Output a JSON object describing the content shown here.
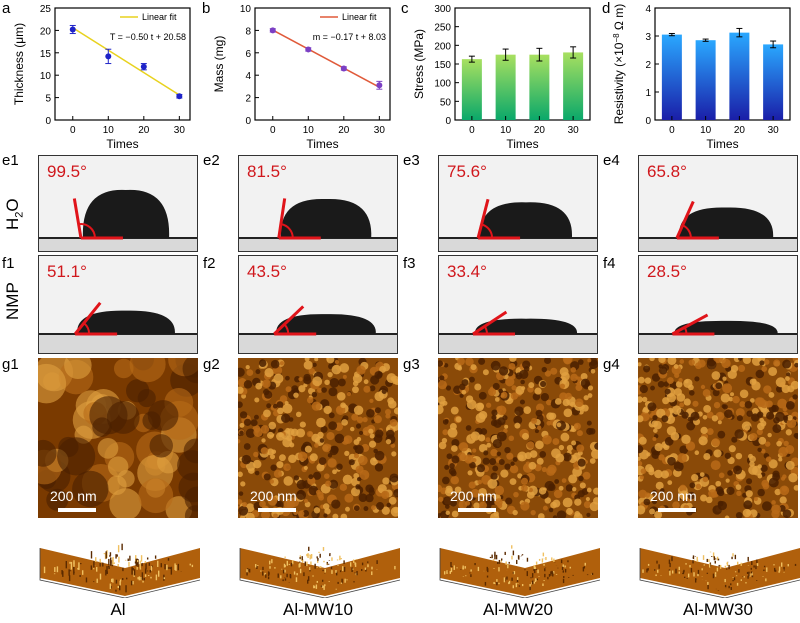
{
  "panel_labels": {
    "a": "a",
    "b": "b",
    "c": "c",
    "d": "d",
    "e1": "e1",
    "e2": "e2",
    "e3": "e3",
    "e4": "e4",
    "f1": "f1",
    "f2": "f2",
    "f3": "f3",
    "f4": "f4",
    "g1": "g1",
    "g2": "g2",
    "g3": "g3",
    "g4": "g4"
  },
  "chart_data": [
    {
      "type": "scatter",
      "xlabel": "Times",
      "ylabel": "Thickness (μm)",
      "xlim": [
        -5,
        33
      ],
      "ylim": [
        0,
        25
      ],
      "xticks": [
        "0",
        "10",
        "20",
        "30"
      ],
      "yticks": [
        "0",
        "5",
        "10",
        "15",
        "20",
        "25"
      ],
      "x": [
        0,
        10,
        20,
        30
      ],
      "y": [
        20.2,
        14.2,
        11.9,
        5.3
      ],
      "err": [
        0.9,
        1.6,
        0.7,
        0.4
      ],
      "fit": {
        "label": "Linear fit",
        "equation": "T = −0.50 t + 20.58",
        "slope": -0.5,
        "intercept": 20.58
      },
      "colors": {
        "points": "#1f24c8",
        "fit": "#e8d21e"
      }
    },
    {
      "type": "scatter",
      "xlabel": "Times",
      "ylabel": "Mass (mg)",
      "xlim": [
        -5,
        33
      ],
      "ylim": [
        0,
        10
      ],
      "xticks": [
        "0",
        "10",
        "20",
        "30"
      ],
      "yticks": [
        "0",
        "2",
        "4",
        "6",
        "8",
        "10"
      ],
      "x": [
        0,
        10,
        20,
        30
      ],
      "y": [
        8.0,
        6.3,
        4.6,
        3.1
      ],
      "err": [
        0.15,
        0.15,
        0.15,
        0.35
      ],
      "fit": {
        "label": "Linear fit",
        "equation": "m = −0.17 t + 8.03",
        "slope": -0.17,
        "intercept": 8.03
      },
      "colors": {
        "points": "#7b3fc4",
        "fit": "#e05a3a"
      }
    },
    {
      "type": "bar",
      "xlabel": "Times",
      "ylabel": "Stress (MPa)",
      "ylim": [
        0,
        300
      ],
      "categories": [
        "0",
        "10",
        "20",
        "30"
      ],
      "yticks": [
        "0",
        "50",
        "100",
        "150",
        "200",
        "250",
        "300"
      ],
      "values": [
        163,
        175,
        175,
        181
      ],
      "err": [
        8,
        15,
        17,
        15
      ],
      "colors": {
        "top": "#a8e060",
        "bottom": "#0aa86a"
      }
    },
    {
      "type": "bar",
      "xlabel": "Times",
      "ylabel_prefix": "Resistivity (×10",
      "ylabel_sup": "−8",
      "ylabel_suffix": " Ω m)",
      "ylim": [
        0,
        4
      ],
      "categories": [
        "0",
        "10",
        "20",
        "30"
      ],
      "yticks": [
        "0",
        "1",
        "2",
        "3",
        "4"
      ],
      "values": [
        3.05,
        2.85,
        3.12,
        2.7
      ],
      "err": [
        0.04,
        0.04,
        0.15,
        0.12
      ],
      "colors": {
        "top": "#2aa8ff",
        "bottom": "#1a1ea8"
      }
    }
  ],
  "contact_angles": {
    "water": [
      "99.5°",
      "81.5°",
      "75.6°",
      "65.8°"
    ],
    "water_deg": [
      99.5,
      81.5,
      75.6,
      65.8
    ],
    "nmp": [
      "51.1°",
      "43.5°",
      "33.4°",
      "28.5°"
    ],
    "nmp_deg": [
      51.1,
      43.5,
      33.4,
      28.5
    ]
  },
  "row_labels": {
    "h2o_main": "H",
    "h2o_sub": "2",
    "h2o_end": "O",
    "nmp": "NMP"
  },
  "scale_bar": "200 nm",
  "samples": [
    "Al",
    "Al-MW10",
    "Al-MW20",
    "Al-MW30"
  ],
  "colors": {
    "angle_text": "#d0171c",
    "afm_dark": "#3a1a00",
    "afm_light": "#f0c060"
  }
}
